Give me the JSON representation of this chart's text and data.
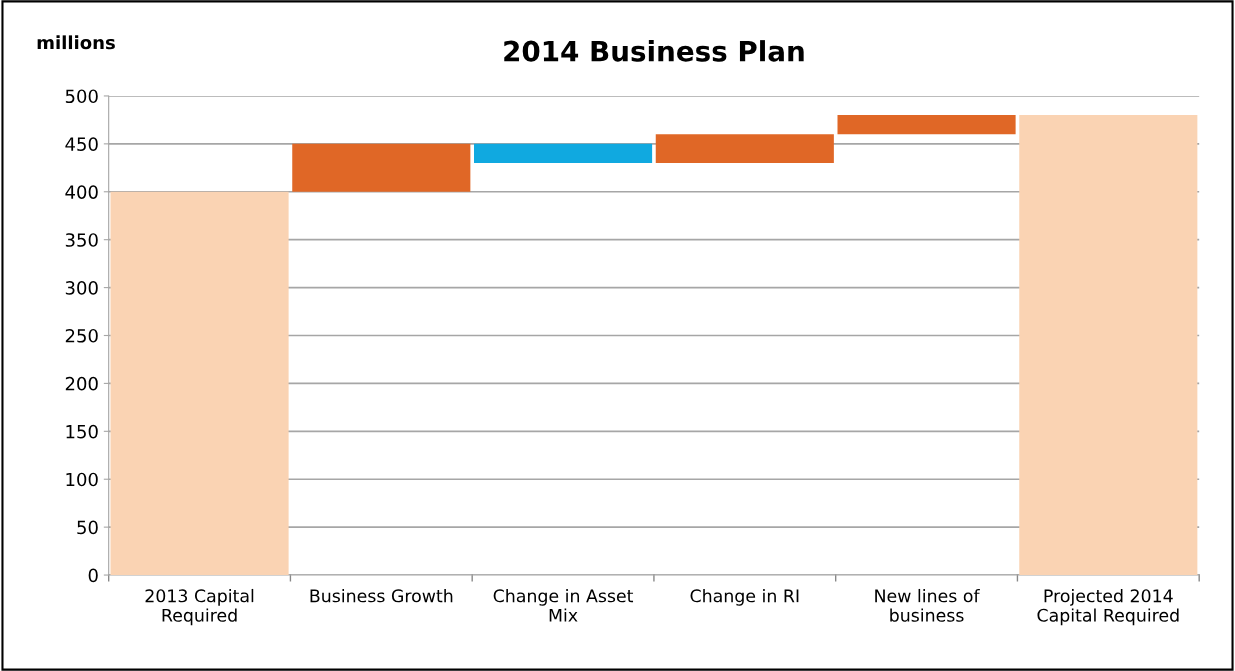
{
  "chart_data": {
    "type": "bar",
    "title": "2014 Business Plan",
    "ylabel": "millions",
    "categories": [
      "2013 Capital\nRequired",
      "Business Growth",
      "Change in Asset\nMix",
      "Change in RI",
      "New lines of\nbusiness",
      "Projected 2014\nCapital Required"
    ],
    "values": [
      400,
      50,
      -20,
      30,
      20,
      480
    ],
    "base": [
      0,
      400,
      450,
      430,
      460,
      0
    ],
    "colors": [
      "#fad3b3",
      "#e06726",
      "#10a9e0",
      "#e06726",
      "#e06726",
      "#fad3b3"
    ],
    "ylim": [
      0,
      500
    ],
    "yticks": [
      0,
      50,
      100,
      150,
      200,
      250,
      300,
      350,
      400,
      450,
      500
    ],
    "grid": "y"
  }
}
